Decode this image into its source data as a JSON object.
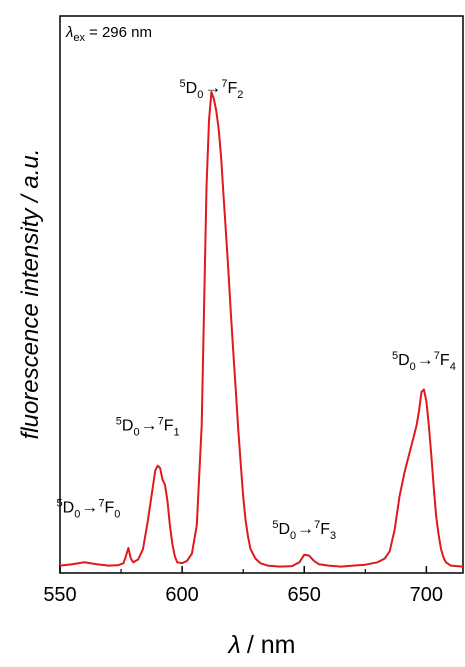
{
  "chart_data": {
    "type": "line",
    "xlabel_symbol": "λ",
    "xlabel_unit": "/ nm",
    "ylabel": "fluorescence intensity / a.u.",
    "xlim": [
      550,
      715
    ],
    "ylim": [
      0,
      100
    ],
    "x_ticks": [
      550,
      600,
      650,
      700
    ],
    "y_ticks_shown": false,
    "grid": false,
    "line_color": "#e0191c",
    "excitation_label": {
      "symbol": "λ",
      "subscript": "ex",
      "text": "= 296 nm"
    },
    "annotations": [
      {
        "id": "f0",
        "upper_pre": "5",
        "upper_main": "D",
        "upper_sub": "0",
        "lower_pre": "7",
        "lower_main": "F",
        "lower_sub": "0",
        "x": 578,
        "y": 7
      },
      {
        "id": "f1",
        "upper_pre": "5",
        "upper_main": "D",
        "upper_sub": "0",
        "lower_pre": "7",
        "lower_main": "F",
        "lower_sub": "1",
        "x": 590,
        "y": 23
      },
      {
        "id": "f2",
        "upper_pre": "5",
        "upper_main": "D",
        "upper_sub": "0",
        "lower_pre": "7",
        "lower_main": "F",
        "lower_sub": "2",
        "x": 612,
        "y": 96
      },
      {
        "id": "f3",
        "upper_pre": "5",
        "upper_main": "D",
        "upper_sub": "0",
        "lower_pre": "7",
        "lower_main": "F",
        "lower_sub": "3",
        "x": 650,
        "y": 5
      },
      {
        "id": "f4",
        "upper_pre": "5",
        "upper_main": "D",
        "upper_sub": "0",
        "lower_pre": "7",
        "lower_main": "F",
        "lower_sub": "4",
        "x": 699,
        "y": 38
      }
    ],
    "series": [
      {
        "x": [
          550,
          555,
          560,
          565,
          570,
          574,
          576,
          577,
          578,
          579,
          580,
          582,
          584,
          586,
          588,
          589,
          590,
          591,
          592,
          593,
          594,
          595,
          596,
          597,
          598,
          600,
          602,
          604,
          606,
          608,
          609,
          610,
          611,
          612,
          613,
          614,
          615,
          616,
          617,
          618,
          619,
          620,
          621,
          622,
          623,
          624,
          625,
          626,
          627,
          628,
          630,
          632,
          635,
          640,
          645,
          648,
          650,
          652,
          654,
          656,
          660,
          665,
          670,
          675,
          680,
          683,
          685,
          687,
          689,
          691,
          693,
          695,
          696,
          697,
          698,
          699,
          700,
          701,
          702,
          703,
          704,
          705,
          706,
          707,
          708,
          710,
          715
        ],
        "y": [
          0.5,
          0.8,
          1.2,
          0.8,
          0.5,
          0.6,
          1.0,
          2.5,
          4.2,
          2.0,
          1.2,
          1.8,
          4.0,
          10.0,
          17.0,
          20.5,
          21.5,
          21.0,
          18.5,
          17.5,
          14.0,
          9.0,
          5.0,
          2.5,
          1.2,
          1.0,
          1.5,
          3.0,
          9.0,
          30.0,
          55.0,
          80.0,
          94.0,
          100.0,
          98.5,
          96.0,
          92.0,
          86.0,
          78.0,
          70.0,
          62.0,
          53.0,
          45.0,
          37.0,
          29.0,
          22.0,
          15.0,
          10.0,
          6.5,
          4.0,
          2.0,
          1.0,
          0.5,
          0.3,
          0.4,
          1.2,
          2.8,
          2.6,
          1.5,
          0.8,
          0.5,
          0.3,
          0.5,
          0.7,
          1.2,
          2.0,
          3.5,
          8.0,
          15.0,
          20.0,
          24.0,
          28.0,
          30.0,
          33.0,
          37.0,
          37.5,
          35.0,
          30.0,
          24.0,
          17.0,
          11.0,
          7.0,
          4.0,
          2.2,
          1.2,
          0.5,
          0.3
        ]
      }
    ]
  }
}
